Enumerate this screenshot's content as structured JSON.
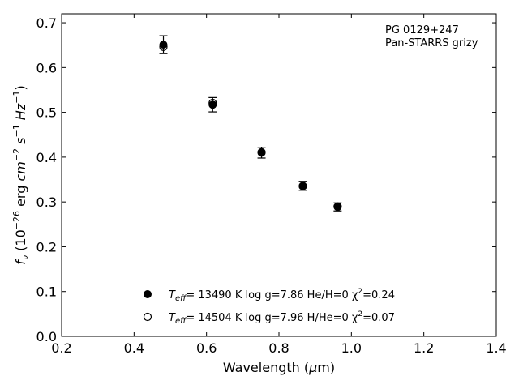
{
  "chart_data": {
    "type": "scatter",
    "title": "",
    "annotations": [
      "PG 0129+247",
      "Pan-STARRS grizy"
    ],
    "xlim": [
      0.2,
      1.4
    ],
    "ylim": [
      0.0,
      0.72
    ],
    "xticks": [
      0.2,
      0.4,
      0.6,
      0.8,
      1.0,
      1.2,
      1.4
    ],
    "yticks": [
      0.0,
      0.1,
      0.2,
      0.3,
      0.4,
      0.5,
      0.6,
      0.7
    ],
    "xtick_labels": [
      "0.2",
      "0.4",
      "0.6",
      "0.8",
      "1.0",
      "1.2",
      "1.4"
    ],
    "ytick_labels": [
      "0.0",
      "0.1",
      "0.2",
      "0.3",
      "0.4",
      "0.5",
      "0.6",
      "0.7"
    ],
    "grid": false,
    "legend_position": "bottom-center",
    "series": [
      {
        "marker": "filled-circle",
        "legend": {
          "temp_prefix": "T",
          "temp_sub": "eff",
          "rest": "= 13490 K  log g=7.86  He/H=0  χ",
          "sup": "2",
          "tail": "=0.24"
        },
        "points": [
          {
            "x": 0.481,
            "y": 0.651,
            "yerr": 0.02
          },
          {
            "x": 0.617,
            "y": 0.517,
            "yerr": 0.016
          },
          {
            "x": 0.752,
            "y": 0.41,
            "yerr": 0.012
          },
          {
            "x": 0.866,
            "y": 0.336,
            "yerr": 0.01
          },
          {
            "x": 0.962,
            "y": 0.289,
            "yerr": 0.009
          }
        ]
      },
      {
        "marker": "open-circle",
        "legend": {
          "temp_prefix": "T",
          "temp_sub": "eff",
          "rest": "= 14504 K  log g=7.96  H/He=0  χ",
          "sup": "2",
          "tail": "=0.07"
        },
        "points": [
          {
            "x": 0.481,
            "y": 0.646
          },
          {
            "x": 0.617,
            "y": 0.521
          },
          {
            "x": 0.752,
            "y": 0.411
          },
          {
            "x": 0.866,
            "y": 0.335
          },
          {
            "x": 0.962,
            "y": 0.29
          }
        ]
      }
    ],
    "xlabel": {
      "text": "Wavelength (",
      "mu": "μ",
      "tail": "m)"
    },
    "ylabel": {
      "f": "f",
      "nu": "ν",
      "paren_open": " (10",
      "exp1": "−26",
      "erg": " erg ",
      "cm": "cm",
      "exp2": "−2",
      "s": " s",
      "exp3": "−1",
      "hz": " Hz",
      "exp4": "−1",
      "paren_close": ")"
    }
  }
}
